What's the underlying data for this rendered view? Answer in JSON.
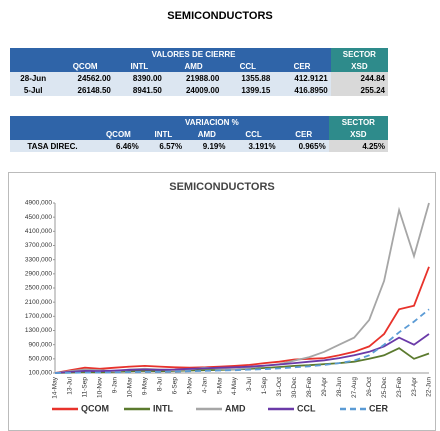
{
  "title": "SEMICONDUCTORS",
  "table1": {
    "group": "VALORES DE CIERRE",
    "sector": "SECTOR",
    "columns": [
      "QCOM",
      "INTL",
      "AMD",
      "CCL",
      "CER",
      "XSD"
    ],
    "rows": [
      [
        "28-Jun",
        "24562.00",
        "8390.00",
        "21988.00",
        "1355.88",
        "412.9121",
        "244.84"
      ],
      [
        "5-Jul",
        "26148.50",
        "8941.50",
        "24009.00",
        "1399.15",
        "416.8950",
        "255.24"
      ]
    ]
  },
  "table2": {
    "group": "VARIACION %",
    "sector": "SECTOR",
    "columns": [
      "QCOM",
      "INTL",
      "AMD",
      "CCL",
      "CER",
      "XSD"
    ],
    "rows": [
      [
        "TASA DIREC.",
        "6.46%",
        "6.57%",
        "9.19%",
        "3.191%",
        "0.965%",
        "4.25%"
      ]
    ]
  },
  "chart_data": {
    "type": "line",
    "title": "SEMICONDUCTORS",
    "categories": [
      "14-May",
      "13-Jul",
      "11-Sep",
      "10-Nov",
      "9-Jan",
      "10-Mar",
      "9-May",
      "8-Jul",
      "6-Sep",
      "5-Nov",
      "4-Jan",
      "5-Mar",
      "4-May",
      "3-Jul",
      "1-Sep",
      "31-Oct",
      "30-Dec",
      "28-Feb",
      "29-Apr",
      "28-Jun",
      "27-Aug",
      "26-Oct",
      "25-Dec",
      "23-Feb",
      "23-Apr",
      "22-Jun"
    ],
    "ylim": [
      100000,
      4900000
    ],
    "yticks": [
      {
        "value": 100000,
        "label": "100,000"
      },
      {
        "value": 500000,
        "label": "500,000"
      },
      {
        "value": 900000,
        "label": "900,000"
      },
      {
        "value": 1300000,
        "label": "1300,000"
      },
      {
        "value": 1700000,
        "label": "1700,000"
      },
      {
        "value": 2100000,
        "label": "2100,000"
      },
      {
        "value": 2500000,
        "label": "2500,000"
      },
      {
        "value": 2900000,
        "label": "2900,000"
      },
      {
        "value": 3300000,
        "label": "3300,000"
      },
      {
        "value": 3700000,
        "label": "3700,000"
      },
      {
        "value": 4100000,
        "label": "4100,000"
      },
      {
        "value": 4500000,
        "label": "4500,000"
      },
      {
        "value": 4900000,
        "label": "4900,000"
      }
    ],
    "series": [
      {
        "name": "QCOM",
        "color": "#e8322b",
        "values": [
          100000,
          180000,
          250000,
          220000,
          250000,
          280000,
          300000,
          280000,
          260000,
          250000,
          260000,
          280000,
          300000,
          330000,
          380000,
          420000,
          480000,
          500000,
          520000,
          600000,
          700000,
          850000,
          1200000,
          1900000,
          2000000,
          3100000
        ]
      },
      {
        "name": "INTL",
        "color": "#5b7a2e",
        "values": [
          100000,
          110000,
          130000,
          120000,
          140000,
          150000,
          160000,
          150000,
          160000,
          170000,
          180000,
          190000,
          200000,
          220000,
          240000,
          270000,
          300000,
          320000,
          350000,
          380000,
          420000,
          500000,
          600000,
          800000,
          500000,
          650000
        ]
      },
      {
        "name": "AMD",
        "color": "#a6a6a6",
        "values": [
          100000,
          150000,
          200000,
          180000,
          150000,
          200000,
          220000,
          200000,
          180000,
          200000,
          250000,
          220000,
          200000,
          250000,
          300000,
          350000,
          450000,
          550000,
          700000,
          900000,
          1100000,
          1600000,
          2700000,
          4700000,
          3400000,
          4900000
        ]
      },
      {
        "name": "CCL",
        "color": "#6a3aa8",
        "values": [
          100000,
          130000,
          160000,
          150000,
          170000,
          190000,
          200000,
          190000,
          200000,
          220000,
          230000,
          250000,
          260000,
          280000,
          310000,
          340000,
          380000,
          420000,
          460000,
          520000,
          600000,
          700000,
          850000,
          1100000,
          900000,
          1200000
        ]
      },
      {
        "name": "CER",
        "color": "#5b9bd5",
        "dashed": true,
        "values": [
          100000,
          105000,
          110000,
          115000,
          120000,
          125000,
          130000,
          135000,
          140000,
          150000,
          160000,
          170000,
          180000,
          195000,
          210000,
          230000,
          260000,
          290000,
          330000,
          380000,
          450000,
          600000,
          900000,
          1250000,
          1550000,
          1900000
        ]
      }
    ]
  }
}
